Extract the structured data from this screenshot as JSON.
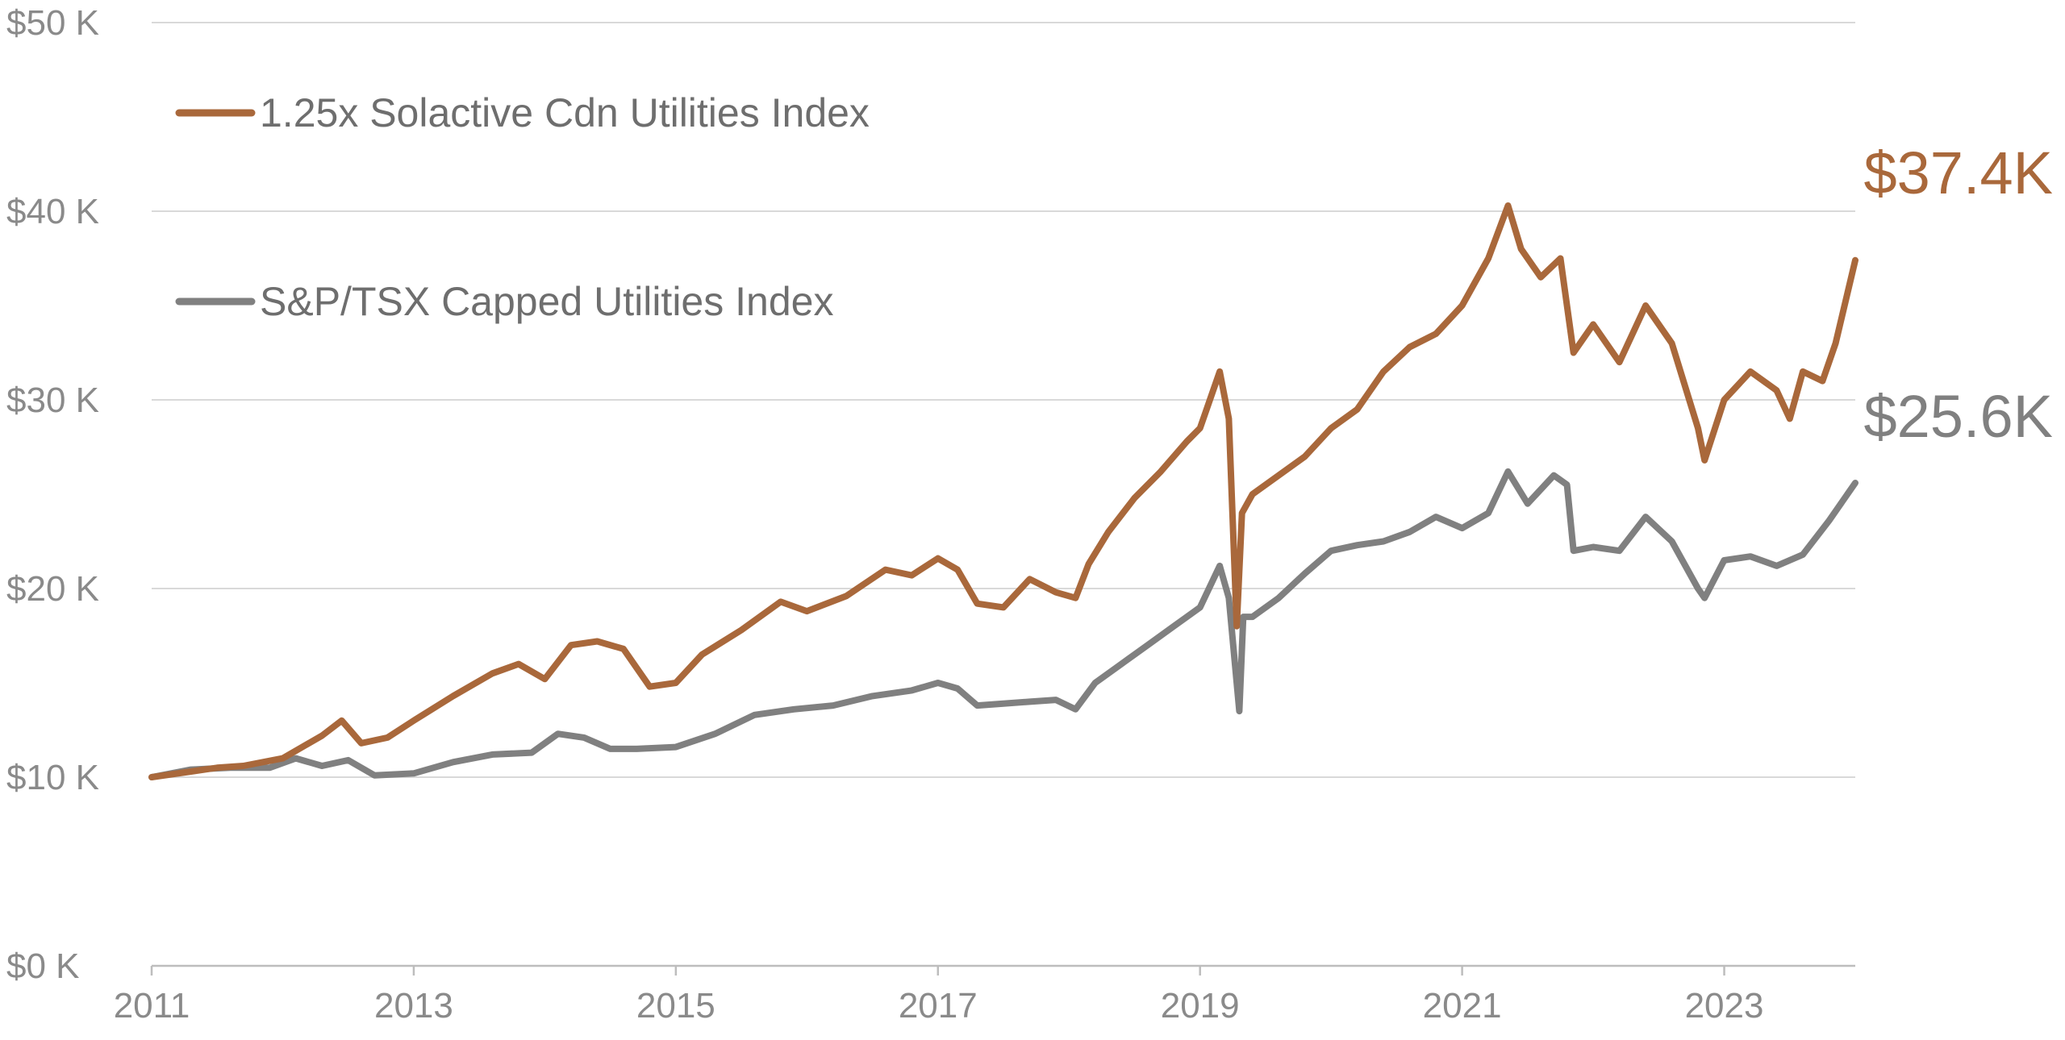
{
  "chart_data": {
    "type": "line",
    "title": "",
    "xlabel": "",
    "ylabel": "",
    "xlim": [
      2011.0,
      2024.0
    ],
    "ylim": [
      0,
      50
    ],
    "y_unit": "$K",
    "grid": true,
    "legend_position": "top-left",
    "y_ticks": [
      {
        "value": 0,
        "label": "$0 K"
      },
      {
        "value": 10,
        "label": "$10 K"
      },
      {
        "value": 20,
        "label": "$20 K"
      },
      {
        "value": 30,
        "label": "$30 K"
      },
      {
        "value": 40,
        "label": "$40 K"
      },
      {
        "value": 50,
        "label": "$50 K"
      }
    ],
    "x_ticks": [
      {
        "value": 2011,
        "label": "2011"
      },
      {
        "value": 2013,
        "label": "2013"
      },
      {
        "value": 2015,
        "label": "2015"
      },
      {
        "value": 2017,
        "label": "2017"
      },
      {
        "value": 2019,
        "label": "2019"
      },
      {
        "value": 2021,
        "label": "2021"
      },
      {
        "value": 2023,
        "label": "2023"
      }
    ],
    "series": [
      {
        "name": "1.25x Solactive Cdn Utilities Index",
        "color": "#a9683b",
        "end_label": "$37.4K",
        "x": [
          2011.0,
          2011.3,
          2011.5,
          2011.7,
          2012.0,
          2012.3,
          2012.45,
          2012.6,
          2012.8,
          2013.0,
          2013.3,
          2013.6,
          2013.8,
          2014.0,
          2014.2,
          2014.4,
          2014.6,
          2014.8,
          2015.0,
          2015.2,
          2015.5,
          2015.8,
          2016.0,
          2016.3,
          2016.6,
          2016.8,
          2017.0,
          2017.15,
          2017.3,
          2017.5,
          2017.7,
          2017.9,
          2018.05,
          2018.15,
          2018.3,
          2018.5,
          2018.7,
          2018.9,
          2019.0,
          2019.15,
          2019.22,
          2019.28,
          2019.32,
          2019.4,
          2019.6,
          2019.8,
          2020.0,
          2020.2,
          2020.4,
          2020.6,
          2020.8,
          2021.0,
          2021.2,
          2021.35,
          2021.45,
          2021.6,
          2021.75,
          2021.85,
          2022.0,
          2022.2,
          2022.4,
          2022.6,
          2022.8,
          2022.85,
          2023.0,
          2023.2,
          2023.4,
          2023.5,
          2023.6,
          2023.75,
          2023.85,
          2024.0
        ],
        "values": [
          10.0,
          10.3,
          10.5,
          10.6,
          11.0,
          12.2,
          13.0,
          11.8,
          12.1,
          13.0,
          14.3,
          15.5,
          16.0,
          15.2,
          17.0,
          17.2,
          16.8,
          14.8,
          15.0,
          16.5,
          17.8,
          19.3,
          18.8,
          19.6,
          21.0,
          20.7,
          21.6,
          21.0,
          19.2,
          19.0,
          20.5,
          19.8,
          19.5,
          21.3,
          23.0,
          24.8,
          26.2,
          27.8,
          28.5,
          31.5,
          29.0,
          18.0,
          24.0,
          25.0,
          26.0,
          27.0,
          28.5,
          29.5,
          31.5,
          32.8,
          33.5,
          35.0,
          37.5,
          40.3,
          38.0,
          36.5,
          37.5,
          32.5,
          34.0,
          32.0,
          35.0,
          33.0,
          28.5,
          26.8,
          30.0,
          31.5,
          30.5,
          29.0,
          31.5,
          31.0,
          33.0,
          37.4
        ]
      },
      {
        "name": "S&P/TSX Capped Utilities Index",
        "color": "#808080",
        "end_label": "$25.6K",
        "x": [
          2011.0,
          2011.3,
          2011.6,
          2011.9,
          2012.1,
          2012.3,
          2012.5,
          2012.7,
          2013.0,
          2013.3,
          2013.6,
          2013.9,
          2014.1,
          2014.3,
          2014.5,
          2014.7,
          2015.0,
          2015.3,
          2015.6,
          2015.9,
          2016.2,
          2016.5,
          2016.8,
          2017.0,
          2017.15,
          2017.3,
          2017.5,
          2017.7,
          2017.9,
          2018.05,
          2018.2,
          2018.4,
          2018.6,
          2018.8,
          2019.0,
          2019.15,
          2019.22,
          2019.3,
          2019.33,
          2019.4,
          2019.6,
          2019.8,
          2020.0,
          2020.2,
          2020.4,
          2020.6,
          2020.8,
          2021.0,
          2021.2,
          2021.35,
          2021.5,
          2021.7,
          2021.8,
          2021.85,
          2022.0,
          2022.2,
          2022.4,
          2022.6,
          2022.8,
          2022.85,
          2023.0,
          2023.2,
          2023.4,
          2023.6,
          2023.8,
          2024.0
        ],
        "values": [
          10.0,
          10.4,
          10.5,
          10.5,
          11.0,
          10.6,
          10.9,
          10.1,
          10.2,
          10.8,
          11.2,
          11.3,
          12.3,
          12.1,
          11.5,
          11.5,
          11.6,
          12.3,
          13.3,
          13.6,
          13.8,
          14.3,
          14.6,
          15.0,
          14.7,
          13.8,
          13.9,
          14.0,
          14.1,
          13.6,
          15.0,
          16.0,
          17.0,
          18.0,
          19.0,
          21.2,
          19.5,
          13.5,
          18.5,
          18.5,
          19.5,
          20.8,
          22.0,
          22.3,
          22.5,
          23.0,
          23.8,
          23.2,
          24.0,
          26.2,
          24.5,
          26.0,
          25.5,
          22.0,
          22.2,
          22.0,
          23.8,
          22.5,
          20.0,
          19.5,
          21.5,
          21.7,
          21.2,
          21.8,
          23.6,
          25.6
        ]
      }
    ]
  }
}
